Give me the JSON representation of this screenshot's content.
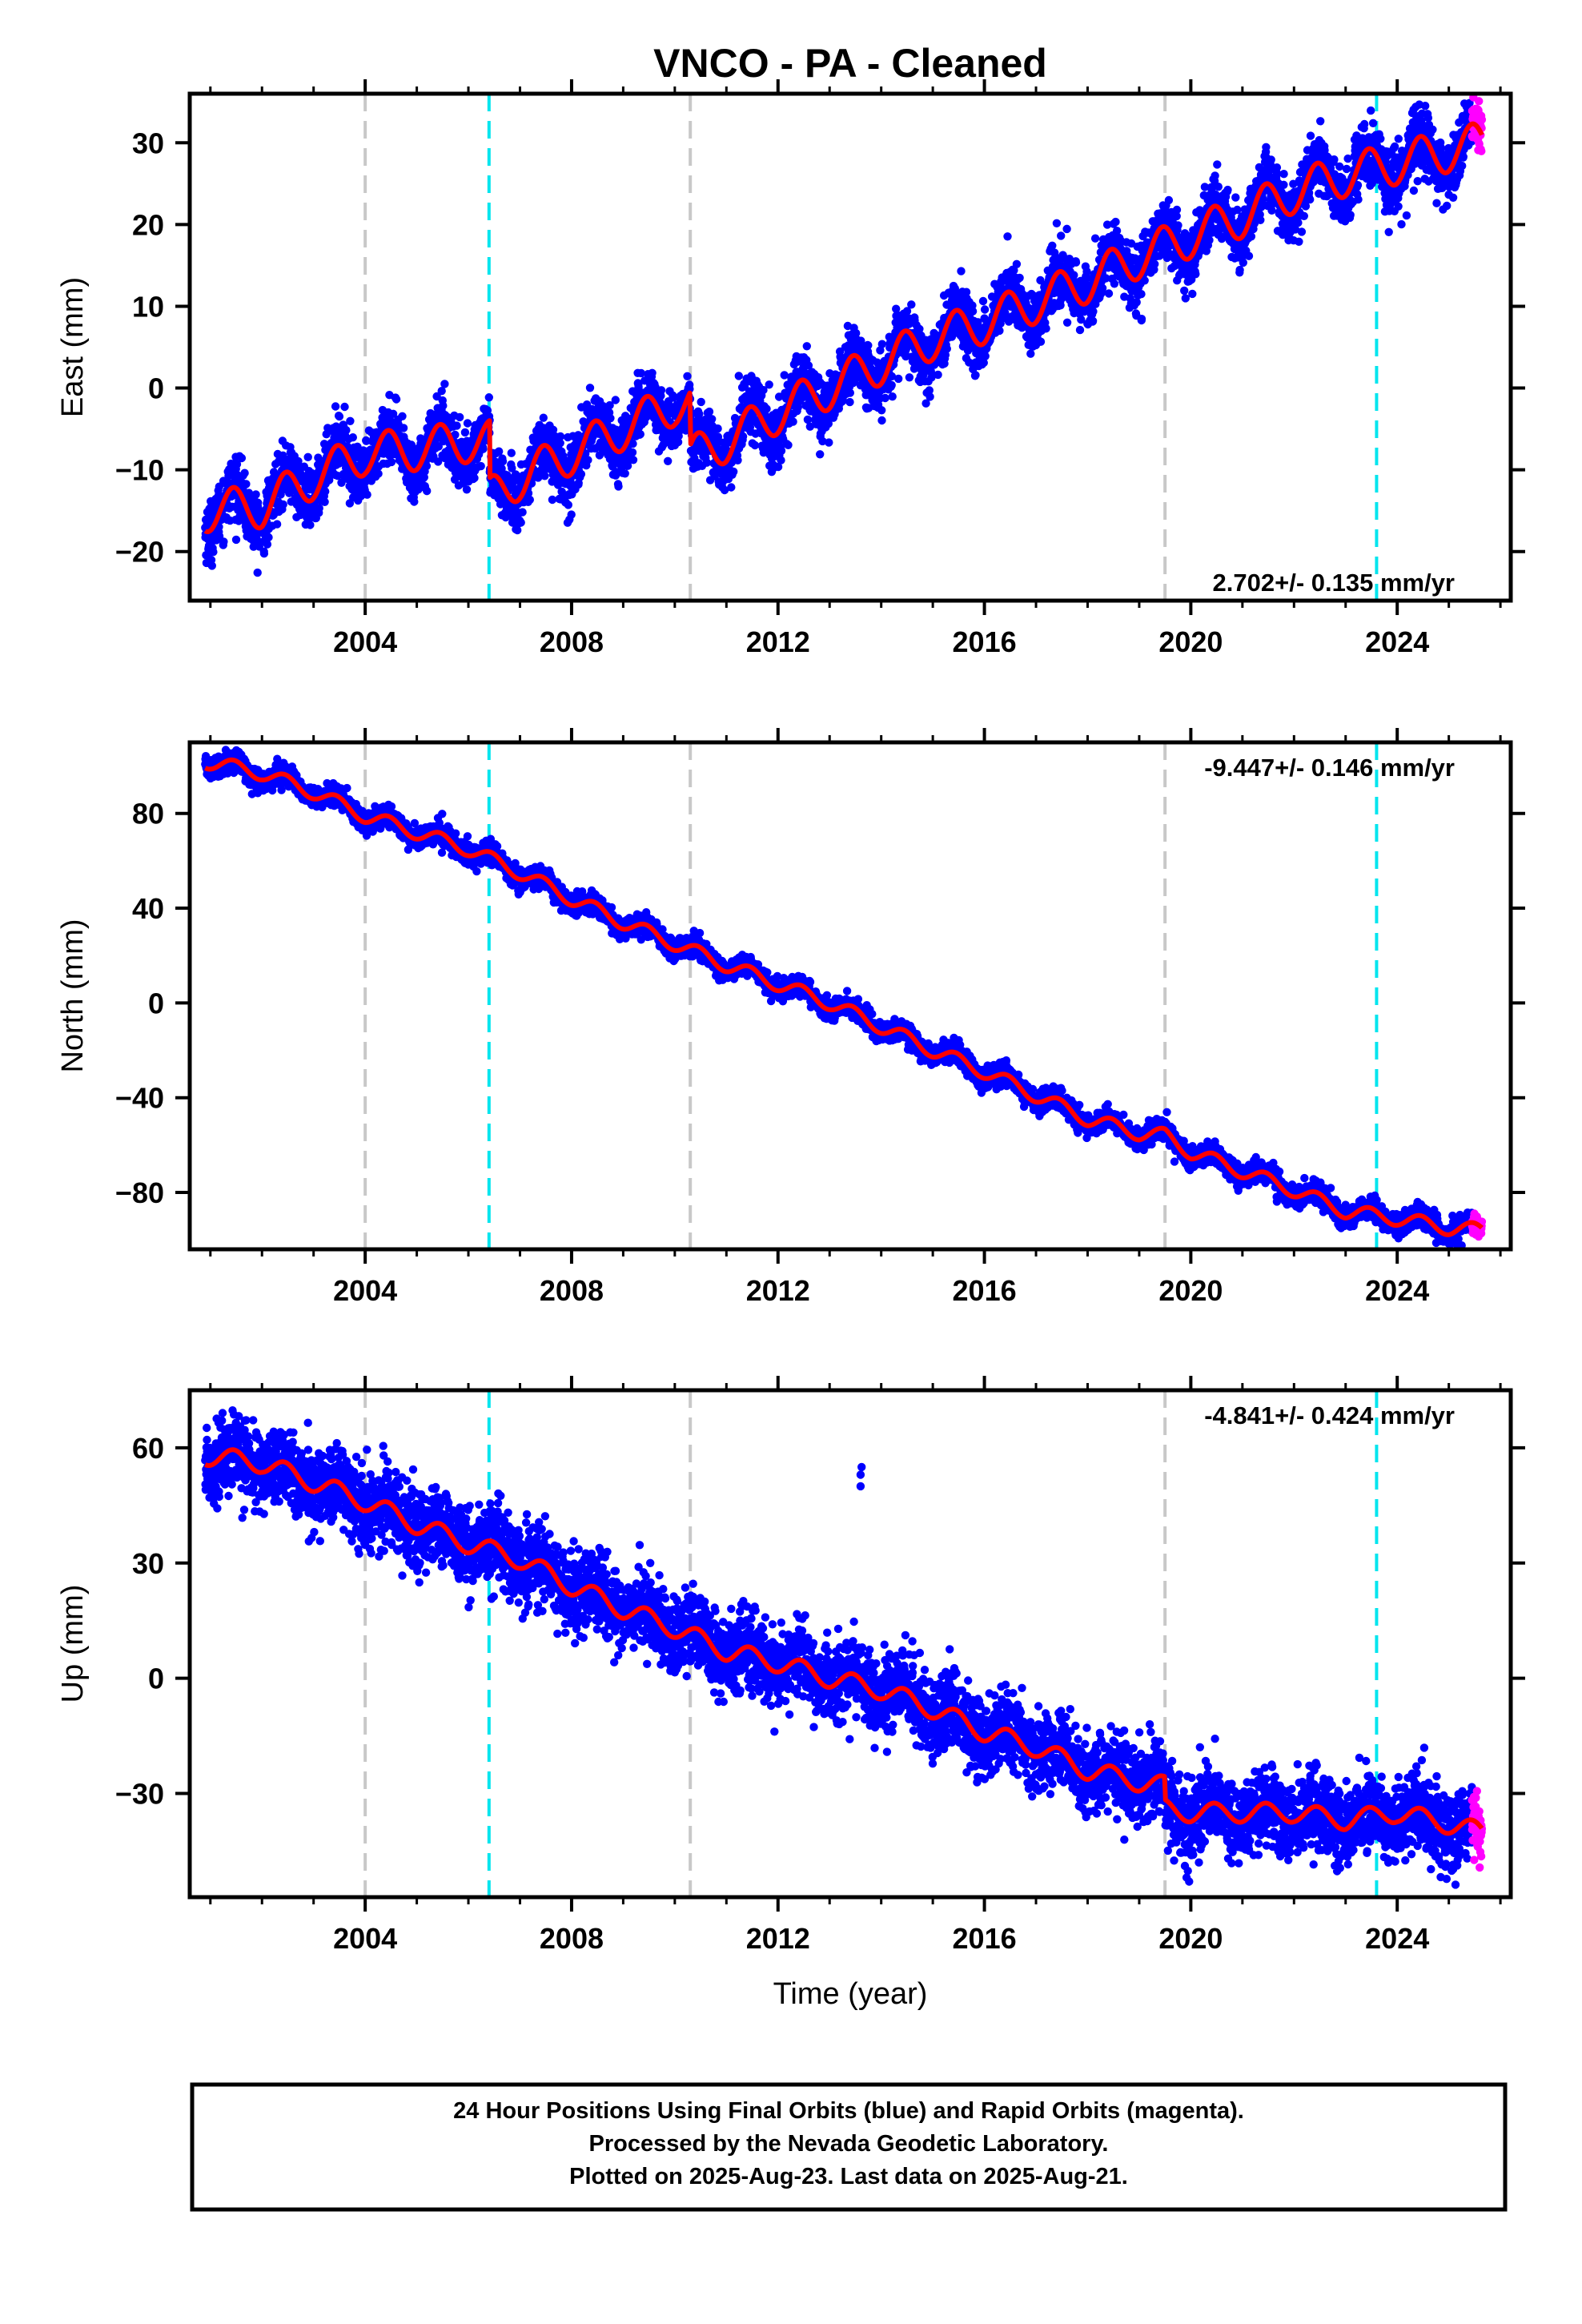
{
  "title": "VNCO  - PA - Cleaned",
  "x_label": "Time (year)",
  "colors": {
    "final_orbit_points": "#0000ff",
    "rapid_orbit_points": "#ff00ff",
    "model_line": "#ff0000",
    "equipment_change_line": "#c8c8c8",
    "earthquake_line": "#00e5ee"
  },
  "footer": {
    "line1": "24 Hour Positions Using Final Orbits (blue) and Rapid Orbits (magenta).",
    "line2": "Processed by the Nevada Geodetic Laboratory.",
    "line3": "Plotted on 2025-Aug-23. Last data on 2025-Aug-21."
  },
  "chart_data": [
    {
      "type": "scatter",
      "component": "east",
      "ylabel": "East (mm)",
      "xlim": [
        2000.6,
        2026.2
      ],
      "ylim": [
        -26,
        36
      ],
      "xticks": [
        2004,
        2008,
        2012,
        2016,
        2020,
        2024
      ],
      "yticks": [
        -20,
        -10,
        0,
        10,
        20,
        30
      ],
      "velocity_label": "2.702+/- 0.135 mm/yr",
      "velocity_label_position": "bottom-right",
      "vlines_gray": [
        2004.0,
        2010.3,
        2019.5
      ],
      "vlines_cyan": [
        2006.4,
        2023.6
      ],
      "data_start": 2000.9,
      "data_end": 2025.64,
      "rapid_start": 2025.45,
      "model_knots": [
        [
          2000.9,
          -15
        ],
        [
          2002,
          -14.5
        ],
        [
          2003,
          -11
        ],
        [
          2004,
          -8
        ],
        [
          2005,
          -7.5
        ],
        [
          2006,
          -6.5
        ],
        [
          2006.41,
          -6.5
        ],
        [
          2006.42,
          -13.5
        ],
        [
          2007,
          -11
        ],
        [
          2008,
          -8
        ],
        [
          2009,
          -5
        ],
        [
          2010,
          -2
        ],
        [
          2010.29,
          -2
        ],
        [
          2010.31,
          -8.5
        ],
        [
          2011,
          -6.5
        ],
        [
          2012,
          -3
        ],
        [
          2013,
          0
        ],
        [
          2014,
          3
        ],
        [
          2015,
          6
        ],
        [
          2016,
          8
        ],
        [
          2017,
          10.5
        ],
        [
          2018,
          13
        ],
        [
          2019,
          16
        ],
        [
          2020,
          18.5
        ],
        [
          2021,
          21
        ],
        [
          2022,
          24
        ],
        [
          2023,
          26
        ],
        [
          2024,
          27.5
        ],
        [
          2025,
          29
        ],
        [
          2025.64,
          30
        ]
      ],
      "seasonal_amplitude": 2.6,
      "scatter_spread": 1.8
    },
    {
      "type": "scatter",
      "component": "north",
      "ylabel": "North (mm)",
      "xlim": [
        2000.6,
        2026.2
      ],
      "ylim": [
        -104,
        110
      ],
      "xticks": [
        2004,
        2008,
        2012,
        2016,
        2020,
        2024
      ],
      "yticks": [
        -80,
        -40,
        0,
        40,
        80
      ],
      "velocity_label": "-9.447+/- 0.146 mm/yr",
      "velocity_label_position": "top-right",
      "vlines_gray": [
        2004.0,
        2010.3,
        2019.5
      ],
      "vlines_cyan": [
        2006.4,
        2023.6
      ],
      "data_start": 2000.9,
      "data_end": 2025.64,
      "rapid_start": 2025.45,
      "model_knots": [
        [
          2000.9,
          102
        ],
        [
          2002,
          97
        ],
        [
          2003,
          89
        ],
        [
          2004,
          79
        ],
        [
          2005,
          72
        ],
        [
          2006,
          65
        ],
        [
          2007,
          55
        ],
        [
          2008,
          44
        ],
        [
          2009,
          34
        ],
        [
          2010,
          25
        ],
        [
          2011,
          16
        ],
        [
          2012,
          8
        ],
        [
          2013,
          0
        ],
        [
          2014,
          -10
        ],
        [
          2015,
          -20
        ],
        [
          2016,
          -29
        ],
        [
          2017,
          -39
        ],
        [
          2018,
          -49
        ],
        [
          2019,
          -55
        ],
        [
          2019.5,
          -56
        ],
        [
          2020,
          -63
        ],
        [
          2021,
          -71
        ],
        [
          2022,
          -79
        ],
        [
          2023,
          -88
        ],
        [
          2024,
          -91
        ],
        [
          2025,
          -95
        ],
        [
          2025.64,
          -96
        ]
      ],
      "seasonal_amplitude": 3.0,
      "scatter_spread": 2.2
    },
    {
      "type": "scatter",
      "component": "up",
      "ylabel": "Up (mm)",
      "xlim": [
        2000.6,
        2026.2
      ],
      "ylim": [
        -57,
        75
      ],
      "xticks": [
        2004,
        2008,
        2012,
        2016,
        2020,
        2024
      ],
      "yticks": [
        -30,
        0,
        30,
        60
      ],
      "velocity_label": "-4.841+/- 0.424 mm/yr",
      "velocity_label_position": "top-right",
      "vlines_gray": [
        2004.0,
        2010.3,
        2019.5
      ],
      "vlines_cyan": [
        2006.4,
        2023.6
      ],
      "data_start": 2000.9,
      "data_end": 2025.64,
      "rapid_start": 2025.45,
      "model_knots": [
        [
          2000.9,
          58
        ],
        [
          2002,
          56
        ],
        [
          2003,
          51
        ],
        [
          2004,
          46
        ],
        [
          2005,
          40
        ],
        [
          2006,
          35
        ],
        [
          2007,
          31
        ],
        [
          2008,
          24
        ],
        [
          2009,
          18
        ],
        [
          2010,
          13
        ],
        [
          2011,
          7
        ],
        [
          2012,
          4
        ],
        [
          2013,
          0
        ],
        [
          2014,
          -3
        ],
        [
          2015,
          -8
        ],
        [
          2016,
          -14
        ],
        [
          2017,
          -18
        ],
        [
          2018,
          -24
        ],
        [
          2019,
          -27
        ],
        [
          2019.49,
          -28
        ],
        [
          2019.51,
          -34
        ],
        [
          2020,
          -35
        ],
        [
          2021,
          -35
        ],
        [
          2022,
          -35
        ],
        [
          2023,
          -37
        ],
        [
          2024,
          -35
        ],
        [
          2025,
          -38
        ],
        [
          2025.64,
          -40
        ]
      ],
      "seasonal_amplitude": 2.5,
      "scatter_spread": 5.0,
      "outliers": [
        [
          2013.6,
          50
        ],
        [
          2013.6,
          53
        ],
        [
          2013.62,
          55
        ]
      ]
    }
  ]
}
